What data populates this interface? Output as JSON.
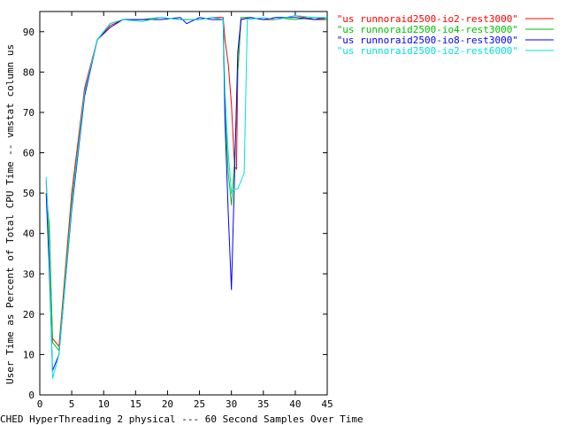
{
  "chart_data": {
    "type": "line",
    "title": "",
    "xlabel": "CHED HyperThreading 2 physical --- 60 Second Samples Over Time",
    "ylabel": "User Time as Percent of Total CPU Time -- vmstat column us",
    "xlim": [
      0,
      45
    ],
    "ylim": [
      0,
      95
    ],
    "xticks": [
      0,
      5,
      10,
      15,
      20,
      25,
      30,
      35,
      40,
      45
    ],
    "yticks": [
      0,
      10,
      20,
      30,
      40,
      50,
      60,
      70,
      80,
      90
    ],
    "grid": false,
    "legend_position": "top-right",
    "series": [
      {
        "name": "\"us runnoraid2500-io2-rest3000\"",
        "color": "#ff0000",
        "points": [
          [
            1,
            53
          ],
          [
            1.5,
            38
          ],
          [
            2,
            14
          ],
          [
            3,
            12
          ],
          [
            5,
            50
          ],
          [
            7,
            76
          ],
          [
            9,
            88
          ],
          [
            11,
            91.5
          ],
          [
            13,
            93
          ],
          [
            16,
            93
          ],
          [
            19,
            93.5
          ],
          [
            22,
            93
          ],
          [
            25,
            93
          ],
          [
            27,
            93.5
          ],
          [
            28.7,
            93.5
          ],
          [
            29,
            88
          ],
          [
            29.5,
            82
          ],
          [
            30,
            72
          ],
          [
            30.5,
            56.5
          ],
          [
            30.8,
            56
          ],
          [
            31,
            80
          ],
          [
            31.5,
            93
          ],
          [
            33,
            93.5
          ],
          [
            35,
            93
          ],
          [
            37,
            93
          ],
          [
            40,
            94
          ],
          [
            43,
            93
          ],
          [
            45,
            93
          ]
        ]
      },
      {
        "name": "\"us runnoraid2500-io4-rest3000\"",
        "color": "#00c000",
        "points": [
          [
            1,
            50
          ],
          [
            1.5,
            42
          ],
          [
            2,
            13
          ],
          [
            3,
            11
          ],
          [
            5,
            48
          ],
          [
            7,
            75
          ],
          [
            9,
            88
          ],
          [
            11,
            92
          ],
          [
            13,
            93
          ],
          [
            16,
            93
          ],
          [
            19,
            93.5
          ],
          [
            22,
            93
          ],
          [
            25,
            93
          ],
          [
            27,
            93.5
          ],
          [
            28.7,
            93
          ],
          [
            29,
            70
          ],
          [
            29.5,
            55
          ],
          [
            30,
            47
          ],
          [
            30.5,
            58
          ],
          [
            31,
            80
          ],
          [
            31.5,
            93.5
          ],
          [
            33,
            93.5
          ],
          [
            35,
            93
          ],
          [
            37,
            93.5
          ],
          [
            40,
            93
          ],
          [
            43,
            93.5
          ],
          [
            45,
            93
          ]
        ]
      },
      {
        "name": "\"us runnoraid2500-io8-rest3000\"",
        "color": "#0000ff",
        "points": [
          [
            1,
            50
          ],
          [
            1.5,
            31
          ],
          [
            2,
            6
          ],
          [
            3,
            10
          ],
          [
            5,
            46
          ],
          [
            7,
            74
          ],
          [
            9,
            88
          ],
          [
            11,
            91
          ],
          [
            13,
            93
          ],
          [
            16,
            93
          ],
          [
            19,
            93
          ],
          [
            22,
            93.5
          ],
          [
            23,
            92
          ],
          [
            25,
            93.5
          ],
          [
            27,
            93
          ],
          [
            28.7,
            93
          ],
          [
            29,
            68
          ],
          [
            29.5,
            45
          ],
          [
            30,
            26
          ],
          [
            30.5,
            55
          ],
          [
            31,
            85
          ],
          [
            31.5,
            93
          ],
          [
            33,
            93.5
          ],
          [
            35,
            93
          ],
          [
            37,
            93.5
          ],
          [
            40,
            93.5
          ],
          [
            43,
            93
          ],
          [
            45,
            93.5
          ]
        ]
      },
      {
        "name": "\"us runnoraid2500-io2-rest6000\"",
        "color": "#00e0e0",
        "points": [
          [
            1,
            54
          ],
          [
            1.5,
            36
          ],
          [
            2,
            4
          ],
          [
            3,
            10
          ],
          [
            5,
            47
          ],
          [
            7,
            75
          ],
          [
            9,
            88
          ],
          [
            11,
            92
          ],
          [
            13,
            93
          ],
          [
            16,
            92.5
          ],
          [
            19,
            93.5
          ],
          [
            22,
            93
          ],
          [
            25,
            93
          ],
          [
            27,
            93.5
          ],
          [
            28.7,
            93
          ],
          [
            29,
            75
          ],
          [
            29.5,
            60
          ],
          [
            30,
            50
          ],
          [
            30.5,
            51
          ],
          [
            31,
            51
          ],
          [
            32,
            55
          ],
          [
            32.5,
            93
          ],
          [
            35,
            93.5
          ],
          [
            37,
            93
          ],
          [
            40,
            94
          ],
          [
            43,
            93.5
          ],
          [
            45,
            93.5
          ]
        ]
      }
    ]
  }
}
